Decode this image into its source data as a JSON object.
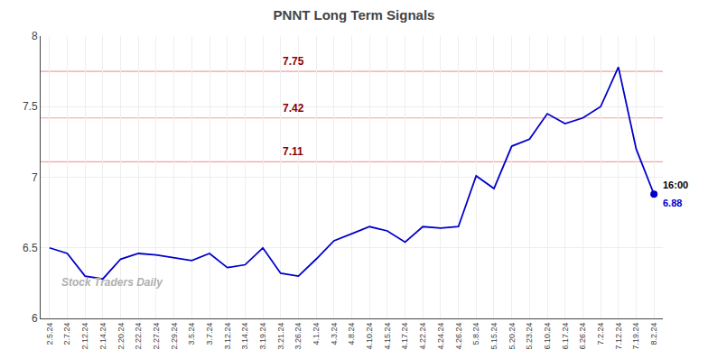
{
  "chart_data": {
    "type": "line",
    "title": "PNNT Long Term Signals",
    "categories": [
      "2.5.24",
      "2.7.24",
      "2.12.24",
      "2.14.24",
      "2.20.24",
      "2.22.24",
      "2.27.24",
      "2.29.24",
      "3.5.24",
      "3.7.24",
      "3.12.24",
      "3.14.24",
      "3.19.24",
      "3.21.24",
      "3.26.24",
      "4.1.24",
      "4.3.24",
      "4.8.24",
      "4.10.24",
      "4.15.24",
      "4.17.24",
      "4.22.24",
      "4.24.24",
      "4.26.24",
      "5.8.24",
      "5.15.24",
      "5.20.24",
      "5.23.24",
      "6.10.24",
      "6.17.24",
      "6.26.24",
      "7.2.24",
      "7.12.24",
      "7.19.24",
      "8.2.24"
    ],
    "values": [
      6.5,
      6.46,
      6.3,
      6.28,
      6.42,
      6.46,
      6.45,
      6.43,
      6.41,
      6.46,
      6.36,
      6.38,
      6.5,
      6.32,
      6.3,
      6.42,
      6.55,
      6.6,
      6.65,
      6.62,
      6.54,
      6.65,
      6.64,
      6.65,
      7.01,
      6.92,
      7.22,
      7.27,
      7.45,
      7.38,
      7.42,
      7.5,
      7.78,
      7.2,
      6.88
    ],
    "color": "#0000cc",
    "hlines": [
      {
        "value": 7.75,
        "label": "7.75",
        "color": "#f5a0a0",
        "label_color": "#8b0000"
      },
      {
        "value": 7.42,
        "label": "7.42",
        "color": "#f5a0a0",
        "label_color": "#8b0000"
      },
      {
        "value": 7.11,
        "label": "7.11",
        "color": "#f5a0a0",
        "label_color": "#8b0000"
      }
    ],
    "last_point": {
      "value": 6.88,
      "time_label": "16:00",
      "price_label": "6.88",
      "color": "#0000cc"
    },
    "watermark": "Stock Traders Daily",
    "ylim": [
      6.0,
      8.0
    ],
    "yticks": [
      6.0,
      6.5,
      7.0,
      7.5,
      8.0
    ],
    "grid": true
  }
}
